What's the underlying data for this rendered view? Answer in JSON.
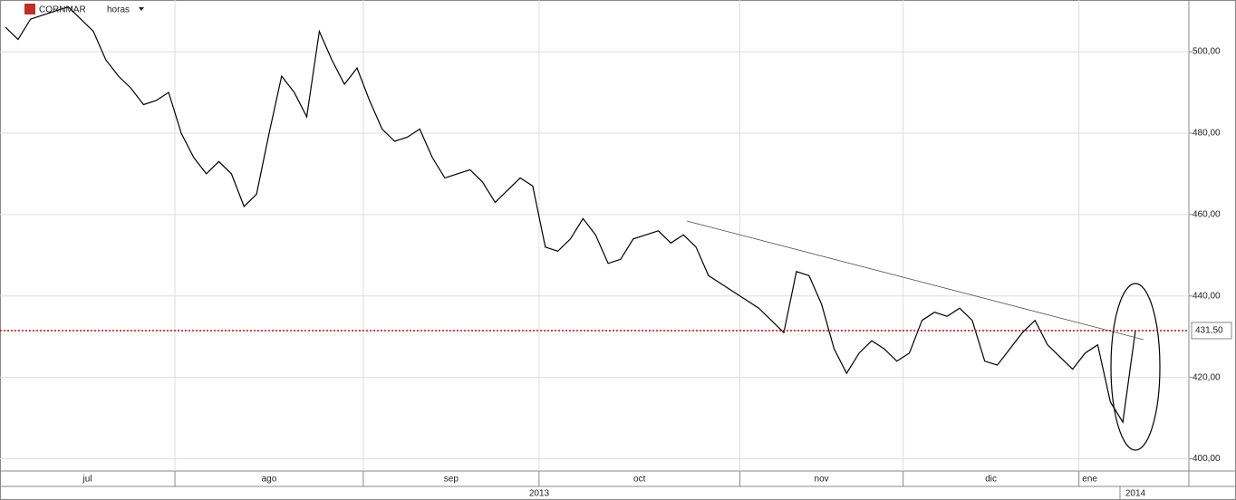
{
  "chart_data": {
    "type": "line",
    "symbol": "CORNMAR",
    "period": "horas",
    "x": [
      "jul",
      "jul",
      "jul",
      "jul",
      "jul",
      "jul",
      "jul",
      "jul",
      "jul",
      "jul",
      "jul",
      "jul",
      "jul",
      "jul",
      "ago",
      "ago",
      "ago",
      "ago",
      "ago",
      "ago",
      "ago",
      "ago",
      "ago",
      "ago",
      "ago",
      "ago",
      "ago",
      "ago",
      "ago",
      "sep",
      "sep",
      "sep",
      "sep",
      "sep",
      "sep",
      "sep",
      "sep",
      "sep",
      "sep",
      "sep",
      "sep",
      "sep",
      "sep",
      "oct",
      "oct",
      "oct",
      "oct",
      "oct",
      "oct",
      "oct",
      "oct",
      "oct",
      "oct",
      "oct",
      "oct",
      "oct",
      "oct",
      "oct",
      "oct",
      "nov",
      "nov",
      "nov",
      "nov",
      "nov",
      "nov",
      "nov",
      "nov",
      "nov",
      "nov",
      "nov",
      "nov",
      "nov",
      "dic",
      "dic",
      "dic",
      "dic",
      "dic",
      "dic",
      "dic",
      "dic",
      "dic",
      "dic",
      "dic",
      "dic",
      "dic",
      "dic",
      "ene",
      "ene",
      "ene",
      "ene",
      "ene"
    ],
    "series": [
      {
        "color": "#000000",
        "values": [
          506,
          503,
          508,
          509,
          510,
          511,
          508,
          505,
          498,
          494,
          491,
          487,
          488,
          490,
          480,
          474,
          470,
          473,
          470,
          462,
          465,
          480,
          494,
          490,
          484,
          505,
          498,
          492,
          496,
          488,
          481,
          478,
          479,
          481,
          474,
          469,
          470,
          471,
          468,
          463,
          466,
          469,
          467,
          452,
          451,
          454,
          459,
          455,
          448,
          449,
          454,
          455,
          456,
          453,
          455,
          452,
          445,
          443,
          441,
          439,
          437,
          434,
          431,
          446,
          445,
          438,
          427,
          421,
          426,
          429,
          427,
          424,
          426,
          434,
          436,
          435,
          437,
          434,
          424,
          423,
          427,
          431,
          434,
          428,
          425,
          422,
          426,
          428,
          414,
          409,
          431.5
        ]
      }
    ],
    "ylim": [
      397,
      512.7
    ],
    "yticks": [
      {
        "value": 400,
        "label": "400,00"
      },
      {
        "value": 420,
        "label": "420,00"
      },
      {
        "value": 440,
        "label": "440,00"
      },
      {
        "value": 460,
        "label": "460,00"
      },
      {
        "value": 480,
        "label": "480,00"
      },
      {
        "value": 500,
        "label": "500,00"
      }
    ],
    "last": {
      "value": 431.5,
      "label": "431,50",
      "color": "#dd0000"
    },
    "years": [
      "2013",
      "2014"
    ],
    "grid": true
  }
}
